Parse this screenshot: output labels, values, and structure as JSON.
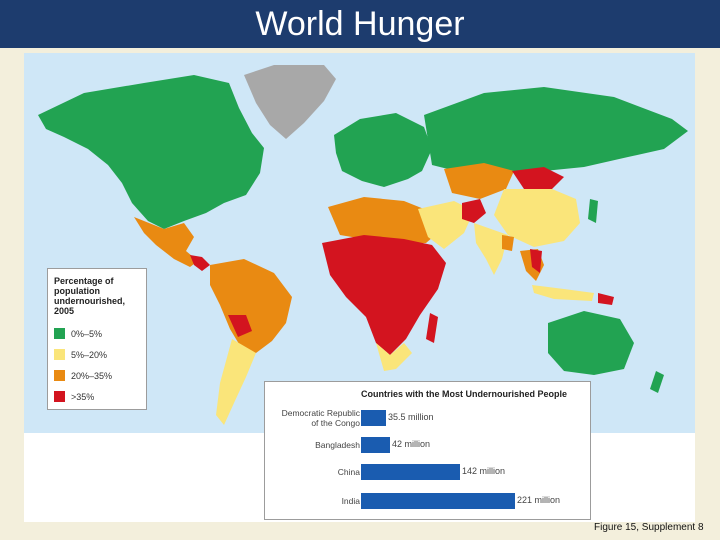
{
  "header": {
    "title": "World Hunger"
  },
  "colors": {
    "ocean": "#cfe7f7",
    "low": "#22a352",
    "moderate": "#fae57a",
    "high": "#e98a12",
    "severe": "#d3141f",
    "no_data": "#a8a8a8",
    "bar": "#1a5cb0"
  },
  "legend": {
    "title": "Percentage of\npopulation\nundernourished,\n2005",
    "items": [
      {
        "label": "0%–5%",
        "color": "#22a352"
      },
      {
        "label": "5%–20%",
        "color": "#fae57a"
      },
      {
        "label": "20%–35%",
        "color": "#e98a12"
      },
      {
        "label": ">35%",
        "color": "#d3141f"
      }
    ]
  },
  "chart_data": {
    "type": "bar",
    "title": "Countries with the Most Undernourished People",
    "categories": [
      "Democratic Republic\nof the Congo",
      "Bangladesh",
      "China",
      "India"
    ],
    "values": [
      35.5,
      42,
      142,
      221
    ],
    "value_labels": [
      "35.5 million",
      "42 million",
      "142 million",
      "221 million"
    ],
    "orientation": "horizontal",
    "xlim": [
      0,
      221
    ]
  },
  "caption": "Figure 15, Supplement 8"
}
